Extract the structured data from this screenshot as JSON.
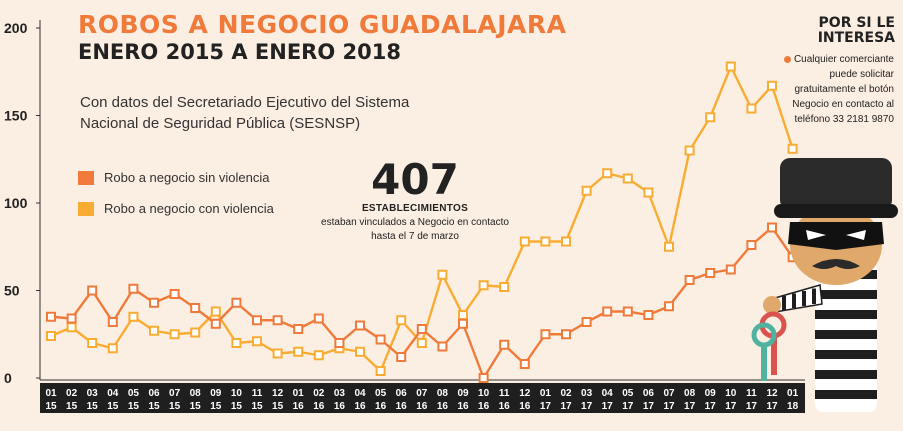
{
  "header": {
    "title_line1": "ROBOS A NEGOCIO GUADALAJARA",
    "title_line2": "ENERO 2015 A ENERO 2018",
    "source": "Con datos del Secretariado Ejecutivo del Sistema Nacional de Seguridad Pública (SESNSP)"
  },
  "highlight": {
    "number": "407",
    "label": "ESTABLECIMIENTOS",
    "text": "estaban vinculados a Negocio en contacto hasta el 7 de marzo"
  },
  "sidebar": {
    "title": "POR SI LE INTERESA",
    "text": "Cualquier comerciante puede solicitar gratuitamente el botón Negocio en contacto al teléfono 33 2181 9870"
  },
  "colors": {
    "sin_violencia": "#f07a3a",
    "con_violencia": "#f9ac32",
    "background": "#fbeee2",
    "axis_band": "#1f1f1f"
  },
  "illustration": "thief-with-keys",
  "chart_data": {
    "type": "line",
    "title": "ROBOS A NEGOCIO GUADALAJARA",
    "xlabel": "",
    "ylabel": "",
    "ylim": [
      0,
      200
    ],
    "yticks": [
      0,
      50,
      100,
      150,
      200
    ],
    "grid": false,
    "legend_position": "left",
    "x": [
      {
        "month": "01",
        "year": "15"
      },
      {
        "month": "02",
        "year": "15"
      },
      {
        "month": "03",
        "year": "15"
      },
      {
        "month": "04",
        "year": "15"
      },
      {
        "month": "05",
        "year": "15"
      },
      {
        "month": "06",
        "year": "15"
      },
      {
        "month": "07",
        "year": "15"
      },
      {
        "month": "08",
        "year": "15"
      },
      {
        "month": "09",
        "year": "15"
      },
      {
        "month": "10",
        "year": "15"
      },
      {
        "month": "11",
        "year": "15"
      },
      {
        "month": "12",
        "year": "15"
      },
      {
        "month": "01",
        "year": "16"
      },
      {
        "month": "02",
        "year": "16"
      },
      {
        "month": "03",
        "year": "16"
      },
      {
        "month": "04",
        "year": "16"
      },
      {
        "month": "05",
        "year": "16"
      },
      {
        "month": "06",
        "year": "16"
      },
      {
        "month": "07",
        "year": "16"
      },
      {
        "month": "08",
        "year": "16"
      },
      {
        "month": "09",
        "year": "16"
      },
      {
        "month": "10",
        "year": "16"
      },
      {
        "month": "11",
        "year": "16"
      },
      {
        "month": "12",
        "year": "16"
      },
      {
        "month": "01",
        "year": "17"
      },
      {
        "month": "02",
        "year": "17"
      },
      {
        "month": "03",
        "year": "17"
      },
      {
        "month": "04",
        "year": "17"
      },
      {
        "month": "05",
        "year": "17"
      },
      {
        "month": "06",
        "year": "17"
      },
      {
        "month": "07",
        "year": "17"
      },
      {
        "month": "08",
        "year": "17"
      },
      {
        "month": "09",
        "year": "17"
      },
      {
        "month": "10",
        "year": "17"
      },
      {
        "month": "11",
        "year": "17"
      },
      {
        "month": "12",
        "year": "17"
      },
      {
        "month": "01",
        "year": "18"
      }
    ],
    "series": [
      {
        "name": "Robo a negocio sin violencia",
        "color": "#f07a3a",
        "values": [
          35,
          34,
          50,
          32,
          51,
          43,
          48,
          40,
          31,
          43,
          33,
          33,
          28,
          34,
          20,
          30,
          22,
          12,
          28,
          18,
          31,
          0,
          19,
          8,
          25,
          25,
          32,
          38,
          38,
          36,
          41,
          56,
          60,
          62,
          76,
          86,
          69
        ]
      },
      {
        "name": "Robo a negocio con violencia",
        "color": "#f9ac32",
        "values": [
          24,
          29,
          20,
          17,
          35,
          27,
          25,
          26,
          38,
          20,
          21,
          14,
          15,
          13,
          17,
          15,
          4,
          33,
          20,
          59,
          36,
          53,
          52,
          78,
          78,
          78,
          107,
          117,
          114,
          106,
          75,
          130,
          149,
          178,
          154,
          167,
          131
        ]
      }
    ]
  }
}
